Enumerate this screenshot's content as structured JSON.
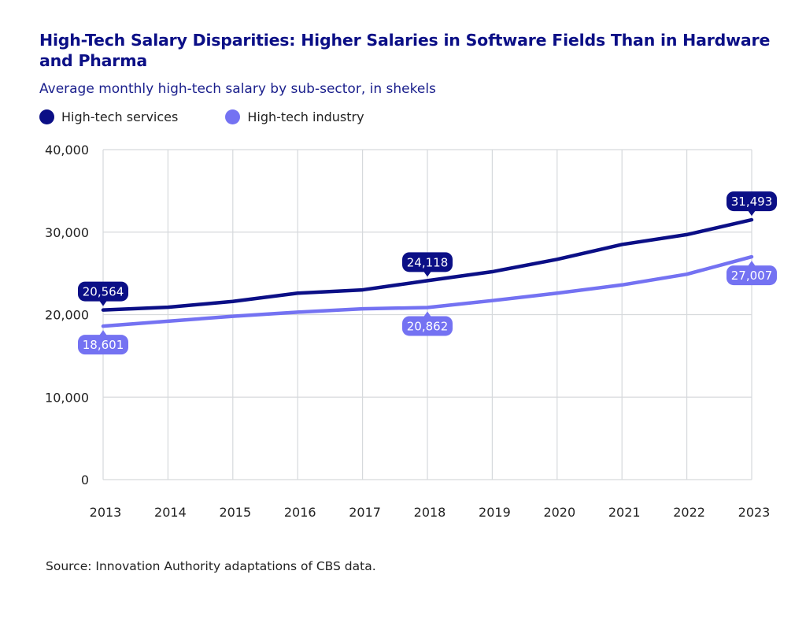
{
  "chart_data": {
    "type": "line",
    "title": "High-Tech Salary Disparities: Higher Salaries in Software Fields Than in Hardware and Pharma",
    "subtitle": "Average monthly high-tech salary by sub-sector, in shekels",
    "xlabel": "",
    "ylabel": "",
    "x": [
      "2013",
      "2014",
      "2015",
      "2016",
      "2017",
      "2018",
      "2019",
      "2020",
      "2021",
      "2022",
      "2023"
    ],
    "ylim": [
      0,
      40000
    ],
    "yticks": [
      0,
      10000,
      20000,
      30000,
      40000
    ],
    "ytick_labels": [
      "0",
      "10,000",
      "20,000",
      "30,000",
      "40,000"
    ],
    "grid": true,
    "legend_position": "top-left",
    "series": [
      {
        "name": "High-tech services",
        "color": "#0b0f86",
        "values": [
          20564,
          20900,
          21600,
          22600,
          23000,
          24118,
          25200,
          26700,
          28500,
          29700,
          31493
        ],
        "labels": [
          {
            "index": 0,
            "text": "20,564",
            "position": "above"
          },
          {
            "index": 5,
            "text": "24,118",
            "position": "above"
          },
          {
            "index": 10,
            "text": "31,493",
            "position": "above"
          }
        ]
      },
      {
        "name": "High-tech industry",
        "color": "#7472f2",
        "values": [
          18601,
          19200,
          19800,
          20300,
          20700,
          20862,
          21700,
          22600,
          23600,
          24900,
          27007
        ],
        "labels": [
          {
            "index": 0,
            "text": "18,601",
            "position": "below"
          },
          {
            "index": 5,
            "text": "20,862",
            "position": "below"
          },
          {
            "index": 10,
            "text": "27,007",
            "position": "below"
          }
        ]
      }
    ],
    "source": "Source: Innovation Authority adaptations of CBS data."
  },
  "colors": {
    "title": "#0b0f86",
    "grid": "#d6d9dc",
    "axis_text": "#222222"
  }
}
